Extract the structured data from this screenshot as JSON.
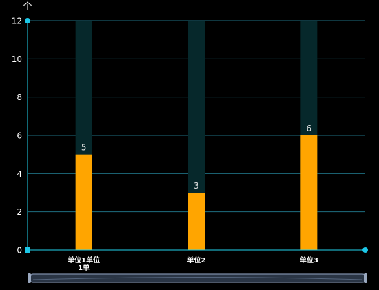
{
  "chart_data": {
    "type": "bar",
    "title": "",
    "xlabel": "",
    "ylabel": "",
    "y_axis_symbol": "个",
    "categories": [
      "单位1单位1单",
      "单位2",
      "单位3"
    ],
    "category_label_lines": [
      [
        "单位1单位",
        "1单"
      ],
      [
        "单位2"
      ],
      [
        "单位3"
      ]
    ],
    "values": [
      5,
      3,
      6
    ],
    "background_values": [
      12,
      12,
      12
    ],
    "ylim": [
      0,
      12
    ],
    "yticks": [
      0,
      2,
      4,
      6,
      8,
      10,
      12
    ],
    "grid": true,
    "legend": "none",
    "data_zoom_slider": true,
    "colors": {
      "bar": "#FFA500",
      "bar_background": "#06282B",
      "axis": "#22D3EE",
      "axis_dot": "#1CC7E8",
      "grid": "#1E6E80",
      "tick_label": "#FFFFFF",
      "value_label": "#E6E6E6",
      "slider_fill": "#2A3545",
      "slider_border": "#7C8CA8"
    }
  }
}
